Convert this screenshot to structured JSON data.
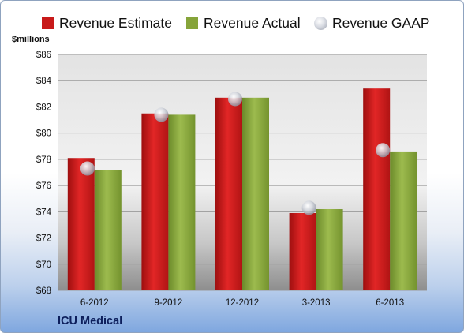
{
  "chart_data": {
    "type": "bar",
    "ylabel": "$millions",
    "ylim": [
      68,
      86
    ],
    "yticks": [
      "$68",
      "$70",
      "$72",
      "$74",
      "$76",
      "$78",
      "$80",
      "$82",
      "$84",
      "$86"
    ],
    "categories": [
      "6-2012",
      "9-2012",
      "12-2012",
      "3-2013",
      "6-2013"
    ],
    "series": [
      {
        "name": "Revenue Estimate",
        "values": [
          78.1,
          81.5,
          82.7,
          73.9,
          83.4
        ],
        "color": "#c81a1a"
      },
      {
        "name": "Revenue Actual",
        "values": [
          77.2,
          81.4,
          82.7,
          74.2,
          78.6
        ],
        "color": "#86a43a"
      },
      {
        "name": "Revenue GAAP",
        "values": [
          77.3,
          81.4,
          82.6,
          74.3,
          78.7
        ],
        "color": "#b9bdc7"
      }
    ],
    "grid": true,
    "legend": "top",
    "company": "ICU Medical"
  }
}
